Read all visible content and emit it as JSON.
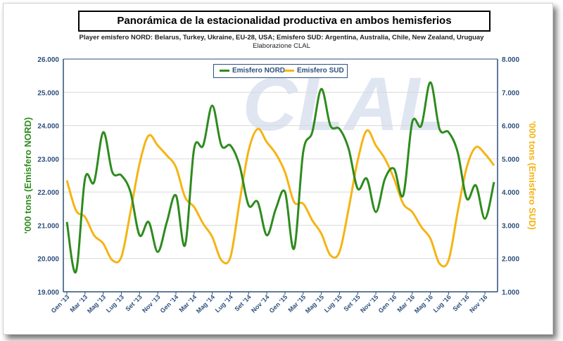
{
  "colors": {
    "nord": "#2e8b1e",
    "sud": "#f5b414",
    "axis": "#2d4f7c",
    "grid": "#d9d9d9",
    "watermark": "#dfe6f2"
  },
  "header": {
    "title": "Panorámica de la estacionalidad productiva en ambos hemisferios",
    "subtitle": "Player emisfero NORD: Belarus, Turkey, Ukraine, EU-28, USA; Emisfero SUD: Argentina, Australia, Chile, New Zealand, Uruguay",
    "credit": "Elaborazione CLAL"
  },
  "watermark": "CLAL",
  "chart_data": {
    "type": "line",
    "title": "Panorámica de la estacionalidad productiva en ambos hemisferios",
    "categories": [
      "Gen '13",
      "Feb '13",
      "Mar '13",
      "Apr '13",
      "Mag '13",
      "Giu '13",
      "Lug '13",
      "Ago '13",
      "Set '13",
      "Ott '13",
      "Nov '13",
      "Dic '13",
      "Gen '14",
      "Feb '14",
      "Mar '14",
      "Apr '14",
      "Mag '14",
      "Giu '14",
      "Lug '14",
      "Ago '14",
      "Set '14",
      "Ott '14",
      "Nov '14",
      "Dic '14",
      "Gen '15",
      "Feb '15",
      "Mar '15",
      "Apr '15",
      "Mag '15",
      "Giu '15",
      "Lug '15",
      "Ago '15",
      "Set '15",
      "Ott '15",
      "Nov '15",
      "Dic '15",
      "Gen '16",
      "Feb '16",
      "Mar '16",
      "Apr '16",
      "Mag '16",
      "Giu '16",
      "Lug '16",
      "Ago '16",
      "Set '16",
      "Ott '16",
      "Nov '16",
      "Dic '16"
    ],
    "x_tick_labels": [
      "Gen '13",
      "Mar '13",
      "Mag '13",
      "Lug '13",
      "Set '13",
      "Nov '13",
      "Gen '14",
      "Mar '14",
      "Mag '14",
      "Lug '14",
      "Set '14",
      "Nov '14",
      "Gen '15",
      "Mar '15",
      "Mag '15",
      "Lug '15",
      "Set '15",
      "Nov '15",
      "Gen '16",
      "Mar '16",
      "Mag '16",
      "Lug '16",
      "Set '16",
      "Nov '16"
    ],
    "series": [
      {
        "name": "Emisfero NORD",
        "axis": "left",
        "values": [
          21.1,
          19.6,
          22.4,
          22.3,
          23.8,
          22.6,
          22.5,
          22.0,
          20.7,
          21.1,
          20.2,
          21.1,
          21.9,
          20.4,
          23.3,
          23.4,
          24.6,
          23.4,
          23.4,
          22.8,
          21.6,
          21.7,
          20.7,
          21.5,
          22.0,
          20.3,
          23.2,
          23.8,
          25.1,
          24.0,
          23.9,
          23.3,
          22.1,
          22.4,
          21.4,
          22.4,
          22.7,
          21.9,
          24.1,
          24.0,
          25.3,
          23.9,
          23.8,
          23.2,
          21.8,
          22.2,
          21.2,
          22.3
        ]
      },
      {
        "name": "Emisfero SUD",
        "axis": "right",
        "values": [
          4.35,
          3.45,
          3.25,
          2.7,
          2.45,
          1.95,
          2.05,
          3.4,
          4.85,
          5.7,
          5.4,
          5.1,
          4.75,
          3.85,
          3.55,
          3.05,
          2.65,
          1.95,
          2.05,
          3.7,
          5.25,
          5.9,
          5.5,
          5.15,
          4.6,
          3.7,
          3.65,
          3.15,
          2.75,
          2.1,
          2.2,
          3.5,
          4.95,
          5.85,
          5.4,
          5.0,
          4.4,
          3.65,
          3.4,
          2.95,
          2.6,
          1.85,
          1.95,
          3.4,
          4.75,
          5.35,
          5.15,
          4.8
        ]
      }
    ],
    "y_left": {
      "label": "'000 tons (Emisfero NORD)",
      "min": 19000,
      "max": 26000,
      "ticks": [
        "19.000",
        "20.000",
        "21.000",
        "22.000",
        "23.000",
        "24.000",
        "25.000",
        "26.000"
      ]
    },
    "y_right": {
      "label": "'000 tons (Emisfero SUD)",
      "min": 1000,
      "max": 8000,
      "ticks": [
        "1.000",
        "2.000",
        "3.000",
        "4.000",
        "5.000",
        "6.000",
        "7.000",
        "8.000"
      ]
    },
    "legend": {
      "position": "top-center",
      "entries": [
        "Emisfero NORD",
        "Emisfero SUD"
      ]
    },
    "grid": true
  }
}
